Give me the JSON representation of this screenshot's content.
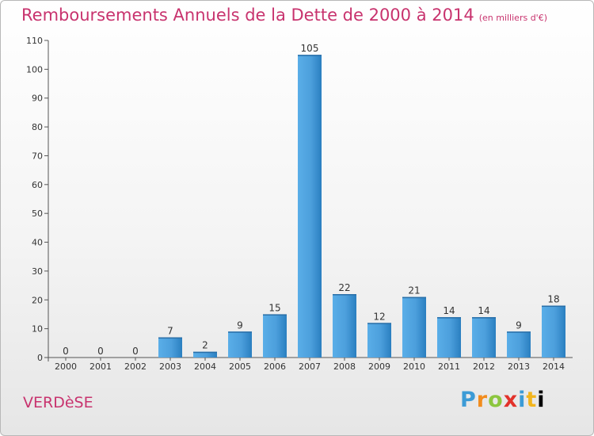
{
  "header": {
    "title": "Remboursements Annuels de la Dette de 2000 à 2014",
    "unit": "(en milliers d'€)"
  },
  "footer": {
    "commune": "VERDèSE",
    "logo_letters": [
      "P",
      "r",
      "o",
      "x",
      "i",
      "t",
      "i"
    ]
  },
  "colors": {
    "accent": "#c8336e",
    "bar_light": "#5aaee8",
    "bar_dark": "#2a7fc0"
  },
  "chart_data": {
    "type": "bar",
    "categories": [
      "2000",
      "2001",
      "2002",
      "2003",
      "2004",
      "2005",
      "2006",
      "2007",
      "2008",
      "2009",
      "2010",
      "2011",
      "2012",
      "2013",
      "2014"
    ],
    "values": [
      0,
      0,
      0,
      7,
      2,
      9,
      15,
      105,
      22,
      12,
      21,
      14,
      14,
      9,
      18
    ],
    "ylim": [
      0,
      110
    ],
    "yticks": [
      0,
      10,
      20,
      30,
      40,
      50,
      60,
      70,
      80,
      90,
      100,
      110
    ],
    "grid": false,
    "data_labels": true
  }
}
